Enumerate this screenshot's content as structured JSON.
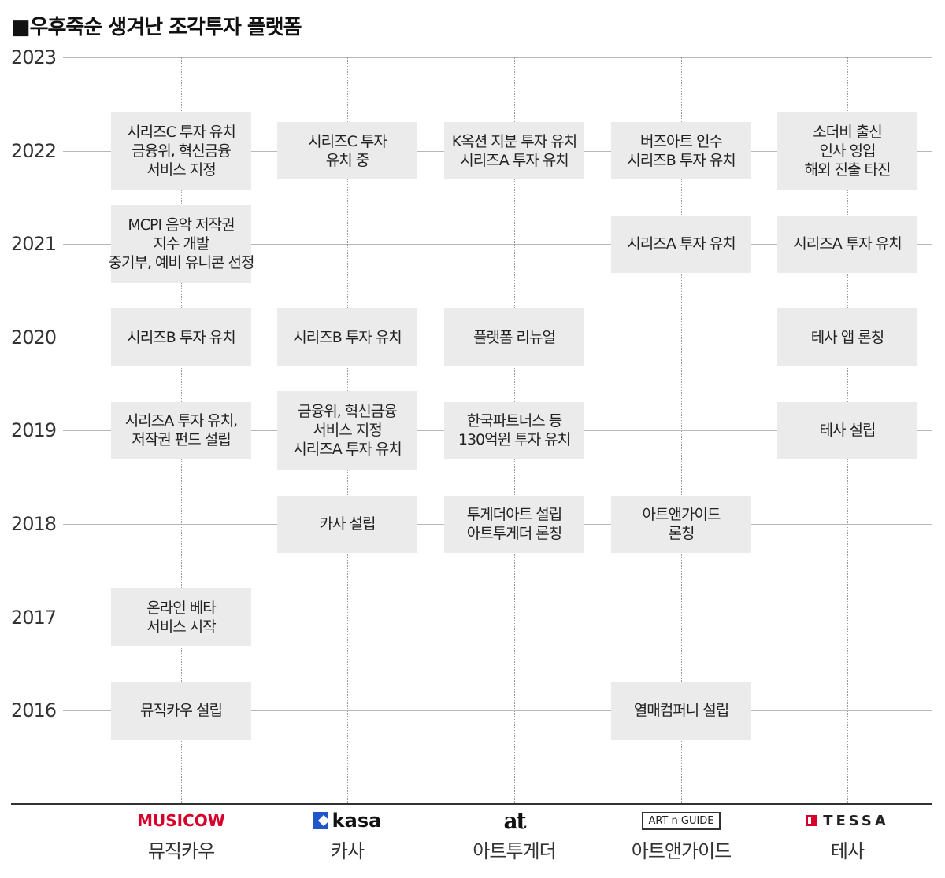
{
  "title": "■우후죽순 생겨난 조각투자 플랫폼",
  "years": [
    "2023",
    "2022",
    "2021",
    "2020",
    "2019",
    "2018",
    "2017",
    "2016"
  ],
  "companies": [
    {
      "name": "뮤직카우",
      "logo_text": "MUSICOW"
    },
    {
      "name": "카사",
      "logo_text": "kasa"
    },
    {
      "name": "아트투게더",
      "logo_text": "at"
    },
    {
      "name": "아트앤가이드",
      "logo_text": "ART n GUIDE"
    },
    {
      "name": "테사",
      "logo_text": "TESSA"
    }
  ],
  "events": [
    {
      "company": 0,
      "year": "2022",
      "lines": [
        "시리즈C 투자 유치",
        "금융위, 혁신금융",
        "서비스 지정"
      ]
    },
    {
      "company": 0,
      "year": "2021",
      "lines": [
        "MCPI 음악 저작권",
        "지수 개발",
        "중기부, 예비 유니콘 선정"
      ]
    },
    {
      "company": 0,
      "year": "2020",
      "lines": [
        "시리즈B 투자 유치"
      ]
    },
    {
      "company": 0,
      "year": "2019",
      "lines": [
        "시리즈A 투자 유치,",
        "저작권 펀드 설립"
      ]
    },
    {
      "company": 0,
      "year": "2017",
      "lines": [
        "온라인 베타",
        "서비스 시작"
      ]
    },
    {
      "company": 0,
      "year": "2016",
      "lines": [
        "뮤직카우 설립"
      ]
    },
    {
      "company": 1,
      "year": "2022",
      "lines": [
        "시리즈C 투자",
        "유치 중"
      ]
    },
    {
      "company": 1,
      "year": "2020",
      "lines": [
        "시리즈B 투자 유치"
      ]
    },
    {
      "company": 1,
      "year": "2019",
      "lines": [
        "금융위, 혁신금융",
        "서비스 지정",
        "시리즈A 투자 유치"
      ]
    },
    {
      "company": 1,
      "year": "2018",
      "lines": [
        "카사 설립"
      ]
    },
    {
      "company": 2,
      "year": "2022",
      "lines": [
        "K옥션 지분 투자 유치",
        "시리즈A 투자 유치"
      ]
    },
    {
      "company": 2,
      "year": "2020",
      "lines": [
        "플랫폼 리뉴얼"
      ]
    },
    {
      "company": 2,
      "year": "2019",
      "lines": [
        "한국파트너스 등",
        "130억원 투자 유치"
      ]
    },
    {
      "company": 2,
      "year": "2018",
      "lines": [
        "투게더아트 설립",
        "아트투게더 론칭"
      ]
    },
    {
      "company": 3,
      "year": "2022",
      "lines": [
        "버즈아트 인수",
        "시리즈B 투자 유치"
      ]
    },
    {
      "company": 3,
      "year": "2021",
      "lines": [
        "시리즈A 투자 유치"
      ]
    },
    {
      "company": 3,
      "year": "2018",
      "lines": [
        "아트앤가이드",
        "론칭"
      ]
    },
    {
      "company": 3,
      "year": "2016",
      "lines": [
        "열매컴퍼니 설립"
      ]
    },
    {
      "company": 4,
      "year": "2022",
      "lines": [
        "소더비 출신",
        "인사 영입",
        "해외 진출 타진"
      ]
    },
    {
      "company": 4,
      "year": "2021",
      "lines": [
        "시리즈A 투자 유치"
      ]
    },
    {
      "company": 4,
      "year": "2020",
      "lines": [
        "테사 앱 론칭"
      ]
    },
    {
      "company": 4,
      "year": "2019",
      "lines": [
        "테사 설립"
      ]
    }
  ],
  "colors": {
    "box_bg": "#ebebeb",
    "grid": "#b8b8b8",
    "musicow_red": "#d6002a",
    "kasa_blue": "#1f56c9",
    "artnguide_teal": "#2aa7a0"
  }
}
